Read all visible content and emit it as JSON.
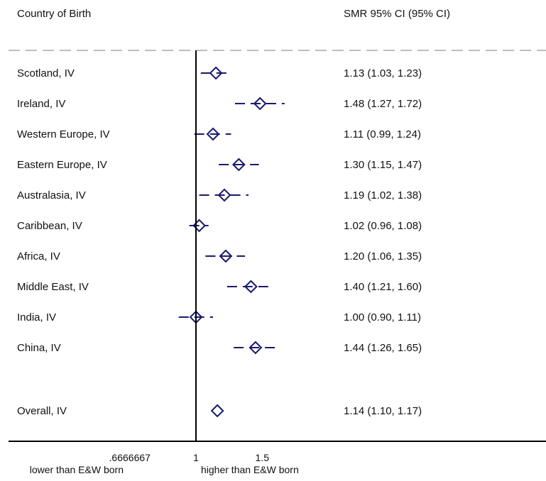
{
  "headers": {
    "left": "Country of Birth",
    "right": "SMR 95% CI (95% CI)"
  },
  "colors": {
    "marker": "#1a1a6e",
    "text": "#111111",
    "axis": "#000000",
    "separator": "#bdbdbd"
  },
  "chart_data": {
    "type": "forest",
    "x_scale": "log",
    "null_line": 1,
    "rows": [
      {
        "label": "Scotland, IV",
        "smr": 1.13,
        "lo": 1.03,
        "hi": 1.23,
        "ci_text": "1.13 (1.03, 1.23)"
      },
      {
        "label": "Ireland, IV",
        "smr": 1.48,
        "lo": 1.27,
        "hi": 1.72,
        "ci_text": "1.48 (1.27, 1.72)"
      },
      {
        "label": "Western Europe, IV",
        "smr": 1.11,
        "lo": 0.99,
        "hi": 1.24,
        "ci_text": "1.11 (0.99, 1.24)"
      },
      {
        "label": "Eastern Europe, IV",
        "smr": 1.3,
        "lo": 1.15,
        "hi": 1.47,
        "ci_text": "1.30 (1.15, 1.47)"
      },
      {
        "label": "Australasia, IV",
        "smr": 1.19,
        "lo": 1.02,
        "hi": 1.38,
        "ci_text": "1.19 (1.02, 1.38)"
      },
      {
        "label": "Caribbean, IV",
        "smr": 1.02,
        "lo": 0.96,
        "hi": 1.08,
        "ci_text": "1.02 (0.96, 1.08)"
      },
      {
        "label": "Africa, IV",
        "smr": 1.2,
        "lo": 1.06,
        "hi": 1.35,
        "ci_text": "1.20 (1.06, 1.35)"
      },
      {
        "label": "Middle East, IV",
        "smr": 1.4,
        "lo": 1.21,
        "hi": 1.6,
        "ci_text": "1.40 (1.21, 1.60)"
      },
      {
        "label": "India, IV",
        "smr": 1.0,
        "lo": 0.9,
        "hi": 1.11,
        "ci_text": "1.00 (0.90, 1.11)"
      },
      {
        "label": "China, IV",
        "smr": 1.44,
        "lo": 1.26,
        "hi": 1.65,
        "ci_text": "1.44 (1.26, 1.65)"
      }
    ],
    "overall": {
      "label": "Overall, IV",
      "smr": 1.14,
      "lo": 1.1,
      "hi": 1.17,
      "ci_text": "1.14 (1.10, 1.17)"
    },
    "x_ticks": [
      {
        "value": 0.6666667,
        "label": ".6666667"
      },
      {
        "value": 1,
        "label": "1"
      },
      {
        "value": 1.5,
        "label": "1.5"
      }
    ],
    "x_caption_left": "lower than E&W born",
    "x_caption_right": "higher than E&W born"
  }
}
